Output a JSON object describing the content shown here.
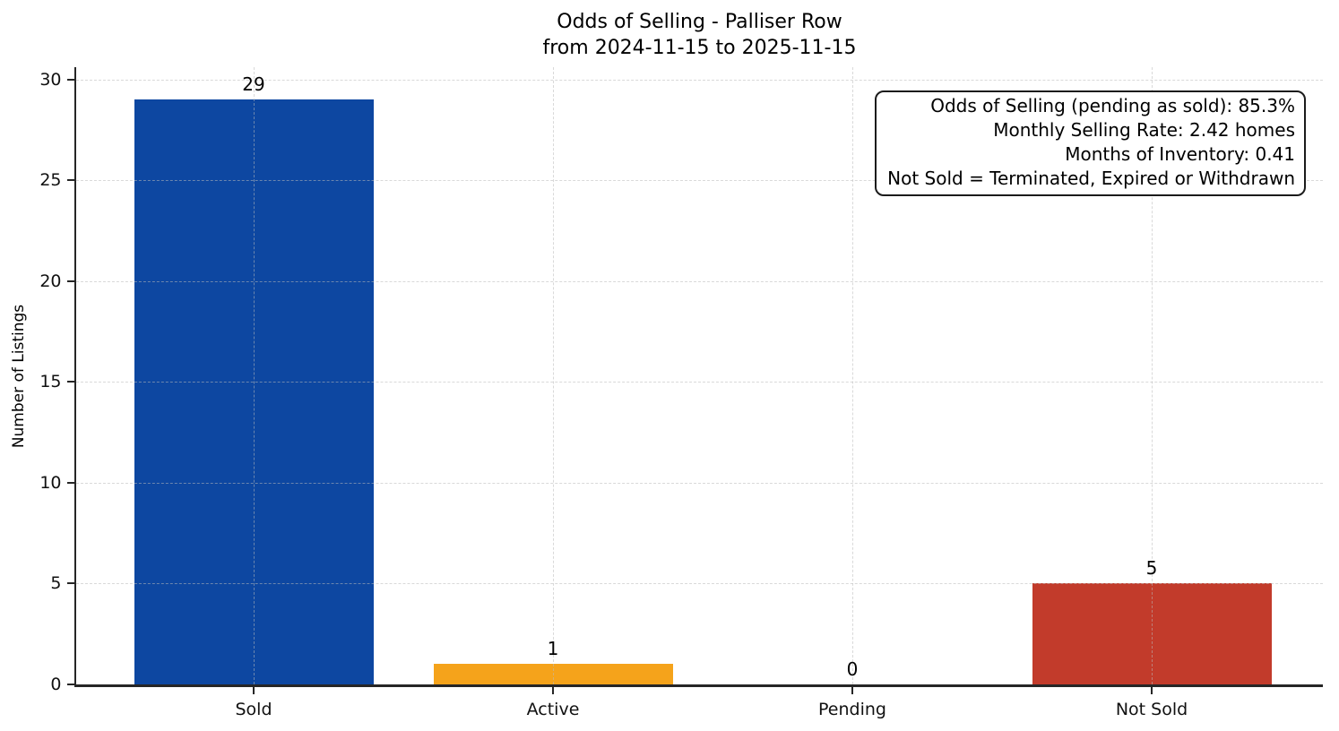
{
  "chart_data": {
    "type": "bar",
    "title": "Odds of Selling - Palliser Row",
    "subtitle": "from 2024-11-15 to 2025-11-15",
    "categories": [
      "Sold",
      "Active",
      "Pending",
      "Not Sold"
    ],
    "values": [
      29,
      1,
      0,
      5
    ],
    "value_labels": [
      "29",
      "1",
      "0",
      "5"
    ],
    "bar_colors": [
      "#0d47a1",
      "#f5a31b",
      null,
      "#c23b2b"
    ],
    "xlabel": "",
    "ylabel": "Number of Listings",
    "yticks": [
      0,
      5,
      10,
      15,
      20,
      25,
      30
    ],
    "ylim": [
      0,
      30.6
    ],
    "grid": {
      "style": "dashed",
      "horizontal": true,
      "vertical": true
    },
    "legend": null,
    "axis_color": "#262626",
    "background": "#ffffff",
    "annotation": {
      "position": "top-right",
      "lines": [
        "Odds of Selling (pending as sold): 85.3%",
        "Monthly Selling Rate: 2.42 homes",
        "Months of Inventory: 0.41",
        "Not Sold = Terminated, Expired or Withdrawn"
      ]
    }
  }
}
